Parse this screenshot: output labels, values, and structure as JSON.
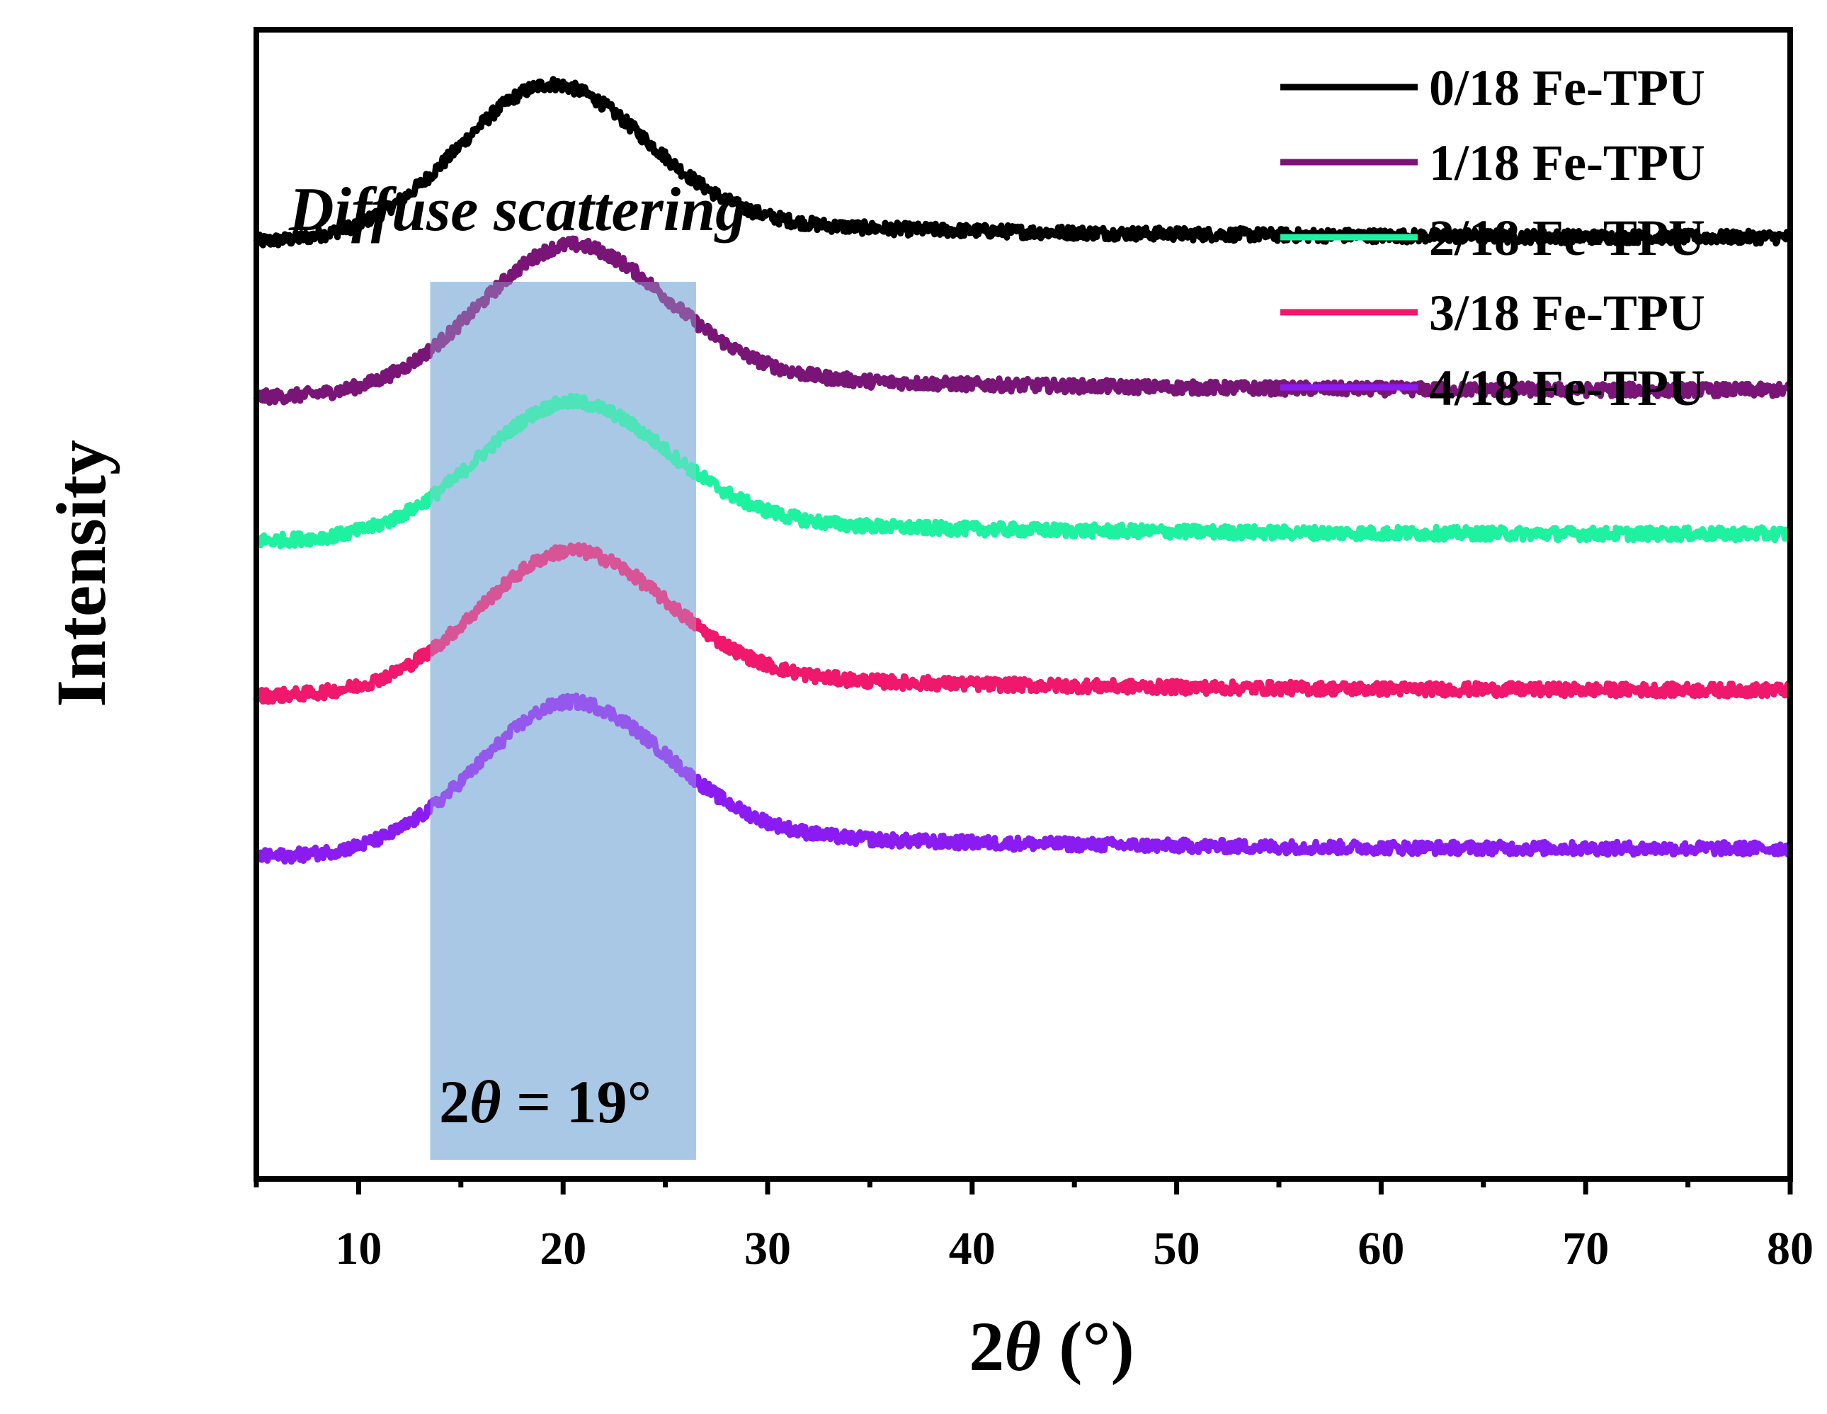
{
  "chart_data": {
    "type": "line",
    "title": "",
    "xlabel": "2θ (°)",
    "xlabel_parts": {
      "prefix": "2",
      "theta": "θ",
      "suffix": " (°)"
    },
    "ylabel": "Intensity",
    "xlim": [
      5,
      80
    ],
    "ylim": [
      0,
      100
    ],
    "xticks": [
      10,
      20,
      30,
      40,
      50,
      60,
      70,
      80
    ],
    "x_minor_step": 5,
    "legend_position": "top-right",
    "grid": false,
    "highlight_band": {
      "x_start": 13.5,
      "x_end": 26.5,
      "color": "#a9c8e6"
    },
    "annotations": {
      "diffuse_label": "Diffuse scattering",
      "peak_label": {
        "prefix": "2",
        "theta": "θ",
        "suffix": " = 19°"
      }
    },
    "series": [
      {
        "name": "0/18 Fe-TPU",
        "color": "#000000",
        "baseline": 81.5,
        "peak_x": 19.5,
        "peak_height": 11.5,
        "peak_width": 4.6,
        "tail": 2.2,
        "tail_decay": 22,
        "end_level": 81.8
      },
      {
        "name": "1/18 Fe-TPU",
        "color": "#7a1578",
        "baseline": 68.0,
        "peak_x": 20.5,
        "peak_height": 11.0,
        "peak_width": 4.6,
        "tail": 2.2,
        "tail_decay": 22,
        "end_level": 68.5
      },
      {
        "name": "2/18 Fe-TPU",
        "color": "#1ef2a0",
        "baseline": 55.5,
        "peak_x": 20.5,
        "peak_height": 10.0,
        "peak_width": 4.6,
        "tail": 2.0,
        "tail_decay": 22,
        "end_level": 56.0
      },
      {
        "name": "3/18 Fe-TPU",
        "color": "#f0186c",
        "baseline": 42.0,
        "peak_x": 20.5,
        "peak_height": 10.5,
        "peak_width": 4.6,
        "tail": 2.1,
        "tail_decay": 22,
        "end_level": 42.4
      },
      {
        "name": "4/18 Fe-TPU",
        "color": "#8a1cf2",
        "baseline": 28.0,
        "peak_x": 20.5,
        "peak_height": 11.0,
        "peak_width": 4.6,
        "tail": 2.4,
        "tail_decay": 22,
        "end_level": 28.6
      }
    ]
  }
}
